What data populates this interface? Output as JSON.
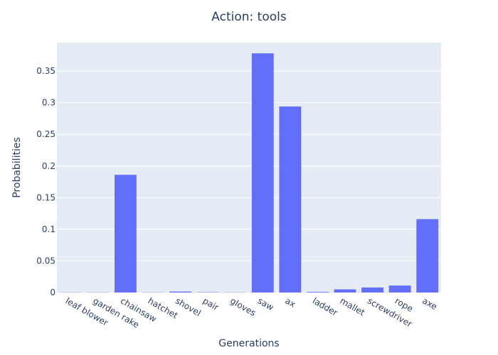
{
  "chart_data": {
    "type": "bar",
    "title": "Action: tools",
    "xlabel": "Generations",
    "ylabel": "Probabilities",
    "categories": [
      "leaf blower",
      "garden rake",
      "chainsaw",
      "hatchet",
      "shovel",
      "pair",
      "gloves",
      "saw",
      "ax",
      "ladder",
      "mallet",
      "screwdriver",
      "rope",
      "axe"
    ],
    "values": [
      0.0003,
      0.0003,
      0.186,
      0.0003,
      0.0015,
      0.0005,
      0.0003,
      0.378,
      0.294,
      0.001,
      0.005,
      0.008,
      0.011,
      0.116
    ],
    "ylim": [
      0,
      0.395
    ],
    "yticks": [
      0,
      0.05,
      0.1,
      0.15,
      0.2,
      0.25,
      0.3,
      0.35
    ],
    "ytick_labels": [
      "0",
      "0.05",
      "0.1",
      "0.15",
      "0.2",
      "0.25",
      "0.3",
      "0.35"
    ],
    "grid": true,
    "legend": "none",
    "colors": {
      "bar": "#636efa",
      "plot_bg": "#e5ecf6",
      "text": "#2a3f5f",
      "grid": "#ffffff"
    }
  }
}
